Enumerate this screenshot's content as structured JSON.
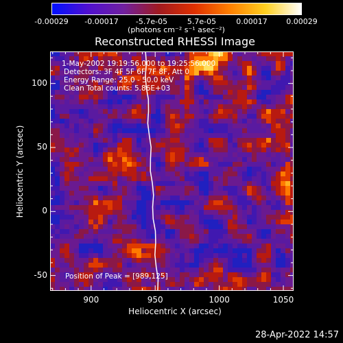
{
  "colorbar": {
    "ticks": [
      "-0.00029",
      "-0.00017",
      "-5.7e-05",
      "5.7e-05",
      "0.00017",
      "0.00029"
    ],
    "units": "(photons cm⁻² s⁻¹ asec⁻²)",
    "colors": [
      "#0010ff",
      "#5010d0",
      "#7020a0",
      "#a01a20",
      "#e03000",
      "#ff8000",
      "#ffd020",
      "#ffffff"
    ]
  },
  "annotations": {
    "time_range": "1-May-2002 19:19:56.000 to 19:25:56.000",
    "detectors": "Detectors: 3F 4F 5F 6F 7F 8F, Att 0",
    "energy": "Energy Range: 25.0 - 50.0 keV",
    "clean": "Clean    Total counts: 5.86E+03",
    "peak": "Position of Peak = [989,125]"
  },
  "footer": {
    "timestamp": "28-Apr-2022 14:57"
  },
  "chart_data": {
    "type": "heatmap",
    "title": "Reconstructed RHESSI Image",
    "xlabel": "Heliocentric X (arcsec)",
    "ylabel": "Heliocentric Y (arcsec)",
    "xlim": [
      868,
      1058
    ],
    "ylim": [
      -62,
      125
    ],
    "xticks": [
      900,
      950,
      1000,
      1050
    ],
    "yticks": [
      -50,
      0,
      50,
      100
    ],
    "value_range": [
      -0.00029,
      0.00029
    ],
    "peak_position": [
      989,
      125
    ],
    "limb_line": {
      "x_bottom": 952,
      "x_top": 942
    }
  }
}
